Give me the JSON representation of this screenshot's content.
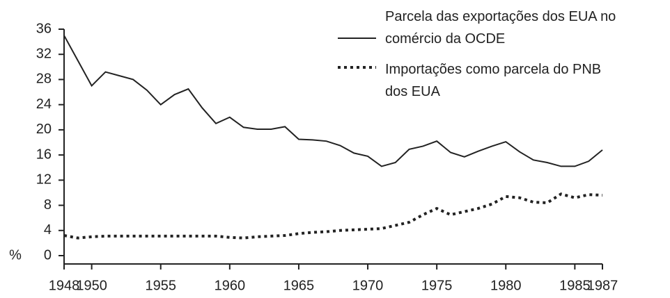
{
  "chart_data": {
    "type": "line",
    "y_label": "%",
    "x": [
      1948,
      1949,
      1950,
      1951,
      1952,
      1953,
      1954,
      1955,
      1956,
      1957,
      1958,
      1959,
      1960,
      1961,
      1962,
      1963,
      1964,
      1965,
      1966,
      1967,
      1968,
      1969,
      1970,
      1971,
      1972,
      1973,
      1974,
      1975,
      1976,
      1977,
      1978,
      1979,
      1980,
      1981,
      1982,
      1983,
      1984,
      1985,
      1986,
      1987
    ],
    "series": [
      {
        "name": "Parcela das exportações dos EUA no comércio da OCDE",
        "color": "#222",
        "style": "solid",
        "values": [
          35,
          31,
          27,
          29.2,
          28.6,
          28,
          26.3,
          24,
          25.6,
          26.5,
          23.5,
          21,
          22,
          20.4,
          20.1,
          20.1,
          20.5,
          18.5,
          18.4,
          18.2,
          17.5,
          16.3,
          15.8,
          14.2,
          14.8,
          16.9,
          17.4,
          18.2,
          16.4,
          15.7,
          16.6,
          17.4,
          18.1,
          16.5,
          15.2,
          14.8,
          14.2,
          14.2,
          15,
          16.8
        ]
      },
      {
        "name": "Importações como parcela do PNB dos EUA",
        "color": "#222",
        "style": "dotted",
        "values": [
          3.2,
          2.8,
          3,
          3.1,
          3.1,
          3.1,
          3.1,
          3.1,
          3.1,
          3.1,
          3.1,
          3.1,
          2.9,
          2.8,
          3,
          3.1,
          3.2,
          3.5,
          3.7,
          3.8,
          4,
          4.1,
          4.2,
          4.3,
          4.8,
          5.3,
          6.5,
          7.5,
          6.5,
          7,
          7.5,
          8.2,
          9.4,
          9.2,
          8.5,
          8.4,
          9.8,
          9.2,
          9.7,
          9.6
        ]
      }
    ],
    "xlim": [
      1948,
      1987
    ],
    "xticks": [
      1948,
      1950,
      1955,
      1960,
      1965,
      1970,
      1975,
      1980,
      1985,
      1987
    ],
    "ylim": [
      0,
      36
    ],
    "yticks": [
      0,
      4,
      8,
      12,
      16,
      20,
      24,
      28,
      32,
      36
    ],
    "grid": false
  }
}
